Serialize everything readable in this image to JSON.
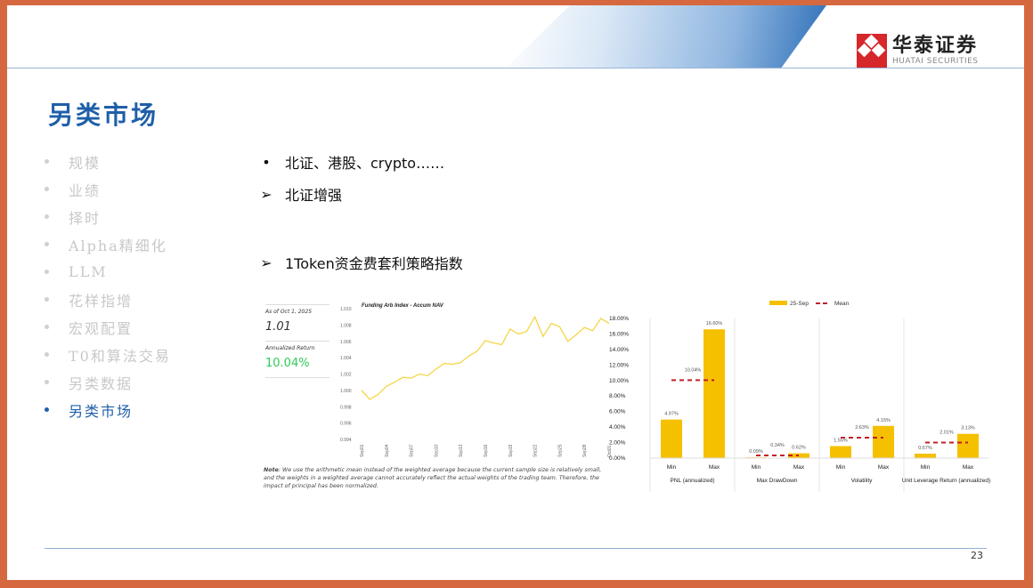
{
  "header": {
    "logo_cn": "华泰证券",
    "logo_en": "HUATAI SECURITIES"
  },
  "title": "另类市场",
  "sidebar": {
    "items": [
      {
        "label": "规模"
      },
      {
        "label": "业绩"
      },
      {
        "label": "择时"
      },
      {
        "label": "Alpha精细化"
      },
      {
        "label": "LLM"
      },
      {
        "label": "花样指增"
      },
      {
        "label": "宏观配置"
      },
      {
        "label": "T0和算法交易"
      },
      {
        "label": "另类数据"
      },
      {
        "label": "另类市场",
        "active": true
      }
    ]
  },
  "bullets": [
    {
      "marker": "•",
      "text": "北证、港股、crypto……"
    },
    {
      "marker": "➢",
      "text": "北证增强"
    },
    {
      "marker": "➢",
      "text": "1Token资金费套利策略指数"
    }
  ],
  "stats": {
    "asof_label": "As of Oct 1, 2025",
    "nav": "1.01",
    "ret_label": "Annualized Return",
    "ret": "10.04%",
    "ret_color": "#2ecc55"
  },
  "note": {
    "bold": "Note",
    "text": ": We use the arithmetic mean instead of the weighted average because the current sample size is relatively small, and the weights in a weighted average cannot accurately reflect the actual weights of the trading team. Therefore, the impact of principal has been normalized."
  },
  "chart_data": [
    {
      "type": "line",
      "title": "Funding Arb Index - Accum NAV",
      "ylim": [
        0.994,
        1.01
      ],
      "yticks": [
        "0.994",
        "0.996",
        "0.998",
        "1.000",
        "1.002",
        "1.004",
        "1.006",
        "1.008",
        "1.010"
      ],
      "xticks": [
        "Sep01",
        "Sep04",
        "Sep07",
        "Sep10",
        "Sep13",
        "Sep16",
        "Sep19",
        "Sep22",
        "Sep25",
        "Sep28",
        "Oct01"
      ],
      "color": "#f5d547",
      "values": [
        1.0,
        0.9989,
        0.9995,
        1.0005,
        1.001,
        1.0016,
        1.0015,
        1.002,
        1.0018,
        1.0026,
        1.0033,
        1.0032,
        1.0034,
        1.0042,
        1.0048,
        1.0061,
        1.0058,
        1.0056,
        1.0075,
        1.0069,
        1.0072,
        1.009,
        1.0066,
        1.0082,
        1.0078,
        1.006,
        1.0068,
        1.0077,
        1.0073,
        1.0088,
        1.0082
      ]
    },
    {
      "type": "bar",
      "ylim": [
        0,
        18
      ],
      "yticks": [
        "0.00%",
        "2.00%",
        "4.00%",
        "6.00%",
        "8.00%",
        "10.00%",
        "12.00%",
        "14.00%",
        "16.00%",
        "18.00%"
      ],
      "legend": [
        "25-Sep",
        "Mean"
      ],
      "bar_color": "#f5c000",
      "mean_color": "#c0202a",
      "groups": [
        {
          "name": "PNL (annualized)",
          "cats": [
            "Min",
            "Max"
          ],
          "values": [
            4.97,
            16.6
          ],
          "labels": [
            "4.97%",
            "16.60%"
          ],
          "mean": 10.04,
          "mean_label": "10.04%"
        },
        {
          "name": "Max DrawDown",
          "cats": [
            "Min",
            "Max"
          ],
          "values": [
            0.09,
            0.62
          ],
          "labels": [
            "0.09%",
            "0.62%"
          ],
          "mean": 0.34,
          "mean_label": "0.34%"
        },
        {
          "name": "Volatility",
          "cats": [
            "Min",
            "Max"
          ],
          "values": [
            1.55,
            4.15
          ],
          "labels": [
            "1.55%",
            "4.15%"
          ],
          "mean": 2.63,
          "mean_label": "2.63%"
        },
        {
          "name": "Unit Leverage Return (annualized)",
          "cats": [
            "Min",
            "Max"
          ],
          "values": [
            0.57,
            3.13
          ],
          "labels": [
            "0.57%",
            "3.13%"
          ],
          "mean": 2.01,
          "mean_label": "2.01%"
        }
      ]
    }
  ],
  "page_number": "23"
}
